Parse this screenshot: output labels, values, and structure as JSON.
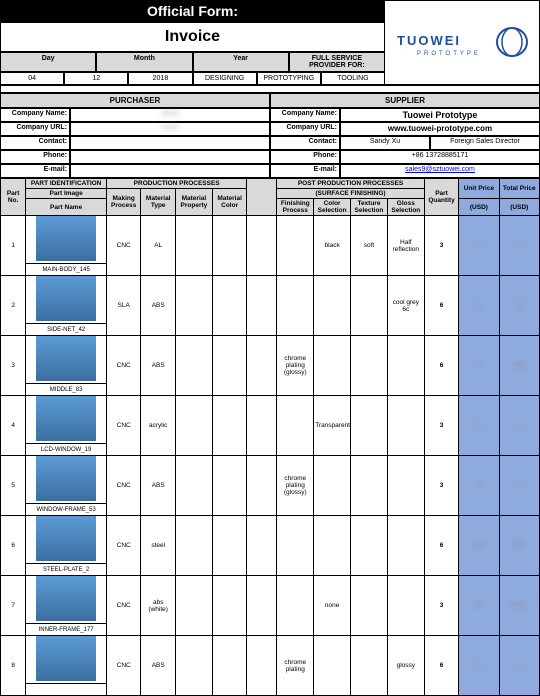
{
  "header": {
    "official": "Official Form:",
    "title": "Invoice"
  },
  "dateLabels": {
    "day": "Day",
    "month": "Month",
    "year": "Year"
  },
  "dateVals": {
    "day": "04",
    "month": "12",
    "year": "2018"
  },
  "fullService": {
    "label": "FULL SERVICE PROVIDER FOR:",
    "a": "DESIGNING",
    "b": "PROTOTYPING",
    "c": "TOOLING"
  },
  "logo": {
    "text": "TUOWEI",
    "sub": "PROTOTYPE",
    "color": "#1f4e9c"
  },
  "sections": {
    "purchaser": "PURCHASER",
    "supplier": "SUPPLIER"
  },
  "infoLabels": {
    "company": "Company Name:",
    "url": "Company URL:",
    "contact": "Contact:",
    "phone": "Phone:",
    "email": "E-mail:"
  },
  "supplier": {
    "company": "Tuowei Prototype",
    "url": "www.tuowei-prototype.com",
    "contactName": "Sandy Xu",
    "contactRole": "Foreign Sales Director",
    "phone": "+86 13728885171",
    "email": "sales9@sztuowei.com"
  },
  "purchaser": {
    "company": "",
    "url": "",
    "contact": "",
    "phone": "",
    "email": ""
  },
  "tableHeaders": {
    "partNo": "Part No.",
    "partId": "PART IDENTIFICATION",
    "partImage": "Part Image",
    "partName": "Part Name",
    "prodProc": "PRODUCTION PROCESSES",
    "making": "Making Process",
    "matType": "Material Type",
    "matProp": "Material Property",
    "matColor": "Material Color",
    "postProd": "POST PRODUCTION PROCESSES",
    "surface": "(SURFACE FINISHING)",
    "finishing": "Finishing Process",
    "colorSel": "Color Selection",
    "texSel": "Texture Selection",
    "glossSel": "Gloss Selection",
    "qty": "Part Quantity",
    "unitPrice": "Unit Price",
    "totalPrice": "Total Price",
    "usd": "(USD)",
    "usd2": "(USD)"
  },
  "rows": [
    {
      "no": "1",
      "name": "MAIN-BODY_145",
      "making": "CNC",
      "matType": "AL",
      "colorSel": "black",
      "texSel": "soft",
      "glossSel": "Half reflection",
      "qty": "3",
      "unit": "",
      "total": ""
    },
    {
      "no": "2",
      "name": "SIDE-NET_42",
      "making": "SLA",
      "matType": "ABS",
      "glossSel": "cool grey 6c",
      "qty": "6",
      "unit": "0",
      "total": "$"
    },
    {
      "no": "3",
      "name": "MIDDLE_83",
      "making": "CNC",
      "matType": "ABS",
      "finishing": "chrome plating (glossy)",
      "qty": "6",
      "unit": "1",
      "total": "$30"
    },
    {
      "no": "4",
      "name": "LCD-WINDOW_19",
      "making": "CNC",
      "matType": "acrylic",
      "colorSel": "Transparent",
      "qty": "3",
      "unit": "",
      "total": ""
    },
    {
      "no": "5",
      "name": "WINDOW-FRAME_53",
      "making": "CNC",
      "matType": "ABS",
      "finishing": "chrome plating (glossy)",
      "qty": "3",
      "unit": "$",
      "total": ""
    },
    {
      "no": "6",
      "name": "STEEL-PLATE_2",
      "making": "CNC",
      "matType": "steel",
      "qty": "6",
      "unit": "$15",
      "total": "$90."
    },
    {
      "no": "7",
      "name": "INNER-FRAME_177",
      "making": "CNC",
      "matType": "abs (white)",
      "colorSel": "none",
      "qty": "3",
      "unit": "00",
      "total": "$198"
    },
    {
      "no": "8",
      "name": "",
      "making": "CNC",
      "matType": "ABS",
      "finishing": "chrome plating",
      "glossSel": "glossy",
      "qty": "6",
      "unit": "",
      "total": ""
    }
  ],
  "colors": {
    "headerGrey": "#d9d9d9",
    "priceBlue": "#8faadc",
    "imgBg": "#5b9bd5"
  }
}
